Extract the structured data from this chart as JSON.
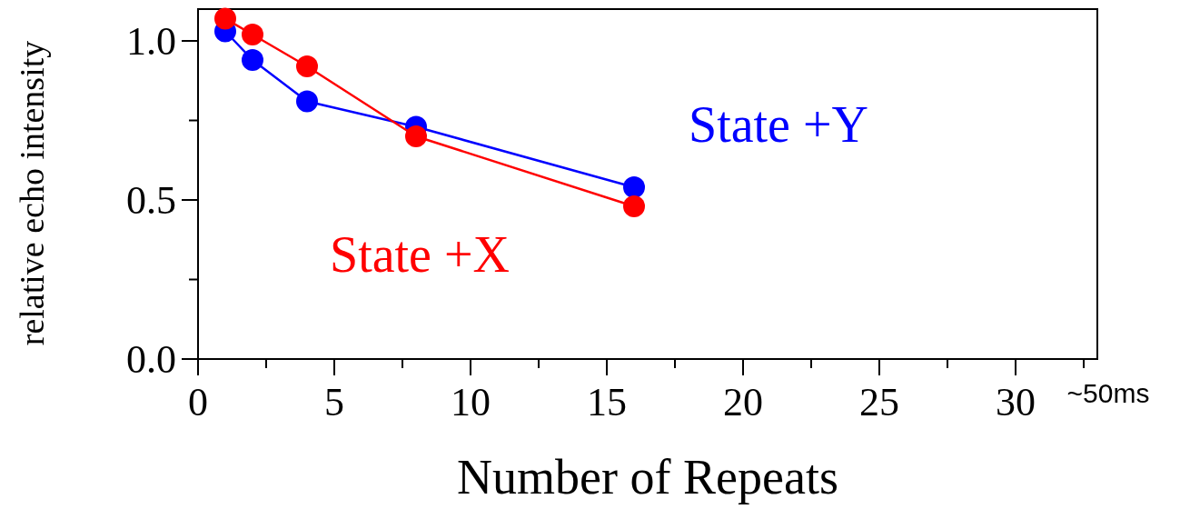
{
  "chart_data": {
    "type": "line",
    "xlabel": "Number of Repeats",
    "ylabel": "relative echo intensity",
    "xlim": [
      0,
      33
    ],
    "ylim": [
      0,
      1.1
    ],
    "xticks": [
      0,
      {
        "value": 2.5,
        "label": null
      },
      5,
      {
        "value": 7.5,
        "label": null
      },
      10,
      {
        "value": 12.5,
        "label": null
      },
      15,
      {
        "value": 17.5,
        "label": null
      },
      20,
      {
        "value": 22.5,
        "label": null
      },
      25,
      {
        "value": 27.5,
        "label": null
      },
      30,
      {
        "value": 32.5,
        "label": null
      }
    ],
    "yticks": [
      {
        "value": 0,
        "label": "0.0"
      },
      {
        "value": 0.25,
        "label": null
      },
      {
        "value": 0.5,
        "label": "0.5"
      },
      {
        "value": 0.75,
        "label": null
      },
      {
        "value": 1,
        "label": "1.0"
      }
    ],
    "x": [
      1,
      2,
      4,
      8,
      16
    ],
    "series": [
      {
        "name": "State +Y",
        "color": "#0000ff",
        "values": [
          1.03,
          0.94,
          0.81,
          0.73,
          0.54
        ]
      },
      {
        "name": "State +X",
        "color": "#ff0000",
        "values": [
          1.07,
          1.02,
          0.92,
          0.7,
          0.48
        ]
      }
    ],
    "marker": "circle",
    "line_style": "solid",
    "grid": false,
    "annotations": [
      "~50ms"
    ]
  }
}
